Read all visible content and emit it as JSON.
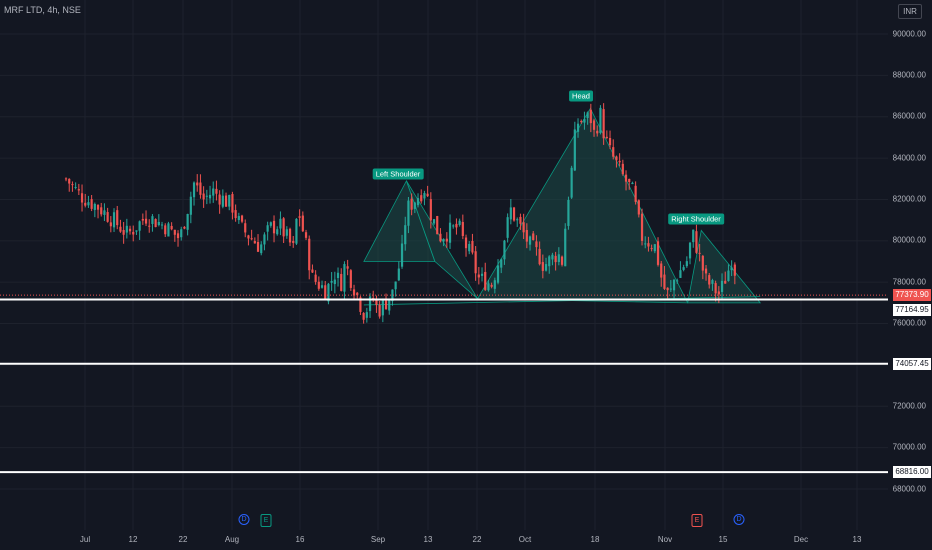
{
  "header": {
    "title": "MRF LTD, 4h, NSE",
    "currency": "INR"
  },
  "yaxis": {
    "ticks": [
      "90000.00",
      "88000.00",
      "86000.00",
      "84000.00",
      "82000.00",
      "80000.00",
      "78000.00",
      "76000.00",
      "74000.00",
      "72000.00",
      "70000.00",
      "68000.00"
    ]
  },
  "xaxis": {
    "ticks": [
      "Jul",
      "12",
      "22",
      "Aug",
      "16",
      "Sep",
      "13",
      "22",
      "Oct",
      "18",
      "Nov",
      "15",
      "Dec",
      "13"
    ]
  },
  "price_labels": {
    "current": "77373.90",
    "level1": "77164.95",
    "level2": "74057.45",
    "level3": "68816.00"
  },
  "pattern": {
    "left_shoulder": "Left Shoulder",
    "head": "Head",
    "right_shoulder": "Right Shoulder"
  },
  "events": [
    "D",
    "E",
    "E",
    "D"
  ],
  "colors": {
    "background": "#131722",
    "up": "#26a69a",
    "down": "#ef5350",
    "pattern_fill": "#1b4a47",
    "pattern_line": "#089981",
    "level_line": "#ffffff",
    "text": "#b2b5be"
  },
  "chart_data": {
    "type": "candlestick",
    "symbol": "MRF LTD",
    "interval": "4h",
    "exchange": "NSE",
    "ylim": [
      67500,
      91000
    ],
    "current_price": 77373.9,
    "levels": [
      77164.95,
      74057.45,
      68816.0
    ],
    "close_path": [
      [
        83000,
        "Jun 27"
      ],
      [
        82200,
        "Jun 30"
      ],
      [
        81600,
        "Jul 4"
      ],
      [
        81000,
        "Jul 7"
      ],
      [
        80300,
        "Jul 10"
      ],
      [
        81200,
        "Jul 14"
      ],
      [
        80700,
        "Jul 18"
      ],
      [
        80100,
        "Jul 21"
      ],
      [
        82800,
        "Jul 24"
      ],
      [
        82000,
        "Jul 26"
      ],
      [
        82400,
        "Jul 28"
      ],
      [
        81700,
        "Aug 1"
      ],
      [
        80600,
        "Aug 3"
      ],
      [
        79700,
        "Aug 7"
      ],
      [
        80600,
        "Aug 9"
      ],
      [
        80800,
        "Aug 11"
      ],
      [
        79600,
        "Aug 14"
      ],
      [
        81600,
        "Aug 15"
      ],
      [
        79500,
        "Aug 17"
      ],
      [
        78200,
        "Aug 18"
      ],
      [
        77600,
        "Aug 21"
      ],
      [
        78500,
        "Aug 23"
      ],
      [
        77800,
        "Aug 24"
      ],
      [
        78900,
        "Aug 25"
      ],
      [
        76500,
        "Aug 29"
      ],
      [
        77200,
        "Aug 31"
      ],
      [
        76600,
        "Sep 1"
      ],
      [
        77400,
        "Sep 4"
      ],
      [
        79300,
        "Sep 6"
      ],
      [
        81500,
        "Sep 7"
      ],
      [
        82600,
        "Sep 11"
      ],
      [
        81400,
        "Sep 12"
      ],
      [
        80200,
        "Sep 14"
      ],
      [
        80700,
        "Sep 18"
      ],
      [
        80000,
        "Sep 19"
      ],
      [
        79100,
        "Sep 21"
      ],
      [
        78200,
        "Sep 22"
      ],
      [
        77900,
        "Sep 25"
      ],
      [
        79500,
        "Sep 27"
      ],
      [
        81500,
        "Sep 29"
      ],
      [
        79800,
        "Oct 3"
      ],
      [
        79300,
        "Oct 5"
      ],
      [
        78800,
        "Oct 6"
      ],
      [
        79400,
        "Oct 9"
      ],
      [
        79000,
        "Oct 10"
      ],
      [
        81700,
        "Oct 11"
      ],
      [
        83400,
        "Oct 12"
      ],
      [
        85700,
        "Oct 13"
      ],
      [
        86000,
        "Oct 16"
      ],
      [
        85000,
        "Oct 17"
      ],
      [
        86300,
        "Oct 18"
      ],
      [
        85100,
        "Oct 19"
      ],
      [
        84400,
        "Oct 20"
      ],
      [
        83100,
        "Oct 23"
      ],
      [
        82400,
        "Oct 25"
      ],
      [
        81300,
        "Oct 26"
      ],
      [
        80200,
        "Oct 27"
      ],
      [
        79700,
        "Oct 30"
      ],
      [
        78400,
        "Oct 31"
      ],
      [
        77600,
        "Nov 1"
      ],
      [
        77300,
        "Nov 2"
      ],
      [
        78100,
        "Nov 3"
      ],
      [
        79100,
        "Nov 6"
      ],
      [
        80400,
        "Nov 7"
      ],
      [
        79700,
        "Nov 8"
      ],
      [
        78100,
        "Nov 10"
      ],
      [
        77400,
        "Nov 13"
      ],
      [
        78600,
        "Nov 15"
      ],
      [
        79400,
        "Nov 16"
      ],
      [
        77400,
        "Nov 17"
      ]
    ],
    "pattern_points": [
      [
        79000,
        "Aug 29"
      ],
      [
        82900,
        "Sep 7"
      ],
      [
        79000,
        "Sep 13"
      ],
      [
        77200,
        "Sep 22"
      ],
      [
        86400,
        "Oct 16"
      ],
      [
        77000,
        "Nov 6"
      ],
      [
        80500,
        "Nov 9"
      ],
      [
        77000,
        "Nov 22"
      ]
    ],
    "pattern_neckline": [
      [
        76900,
        "Aug 29"
      ],
      [
        77300,
        "Nov 22"
      ]
    ]
  }
}
